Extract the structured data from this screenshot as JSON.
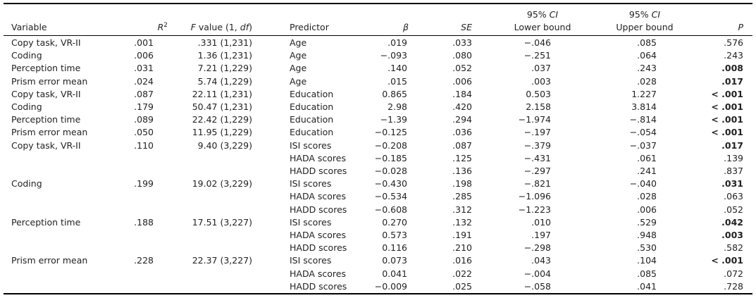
{
  "headers": {
    "variable": "Variable",
    "r2_base": "R",
    "r2_sup": "2",
    "f_italic": "F",
    "f_rest": " value (1, ",
    "f_df": "df",
    "f_close": ")",
    "predictor": "Predictor",
    "beta": "β",
    "se": "SE",
    "ci_lower_top": "95% CI",
    "ci_lower_bottom": "Lower bound",
    "ci_upper_top": "95% CI",
    "ci_upper_bottom": "Upper bound",
    "p": "P"
  },
  "left_rows": [
    {
      "variable": "Copy task, VR-II",
      "r2": ".001",
      "f": ".331 (1,231)"
    },
    {
      "variable": "Coding",
      "r2": ".006",
      "f": "1.36 (1,231)"
    },
    {
      "variable": "Perception time",
      "r2": ".031",
      "f": "7.21 (1,229)"
    },
    {
      "variable": "Prism error mean",
      "r2": ".024",
      "f": "5.74 (1,229)"
    },
    {
      "variable": "Copy task, VR-II",
      "r2": ".087",
      "f": "22.11 (1,231)"
    },
    {
      "variable": "Coding",
      "r2": ".179",
      "f": "50.47 (1,231)"
    },
    {
      "variable": "Perception time",
      "r2": ".089",
      "f": "22.42 (1,229)"
    },
    {
      "variable": "Prism error mean",
      "r2": ".050",
      "f": "11.95 (1,229)"
    },
    {
      "variable": "Copy task, VR-II",
      "r2": ".110",
      "f": "9.40 (3,229)"
    },
    {
      "variable": "Coding",
      "r2": ".199",
      "f": "19.02 (3,229)"
    },
    {
      "variable": "Perception time",
      "r2": ".188",
      "f": "17.51 (3,227)"
    },
    {
      "variable": "Prism error mean",
      "r2": ".228",
      "f": "22.37 (3,227)"
    }
  ],
  "right_rows": [
    {
      "predictor": "Age",
      "beta": ".019",
      "se": ".033",
      "lower": "−.046",
      "upper": ".085",
      "p": ".576",
      "bold": false
    },
    {
      "predictor": "Age",
      "beta": "−.093",
      "se": ".080",
      "lower": "−.251",
      "upper": ".064",
      "p": ".243",
      "bold": false
    },
    {
      "predictor": "Age",
      "beta": ".140",
      "se": ".052",
      "lower": ".037",
      "upper": ".243",
      "p": ".008",
      "bold": true
    },
    {
      "predictor": "Age",
      "beta": ".015",
      "se": ".006",
      "lower": ".003",
      "upper": ".028",
      "p": ".017",
      "bold": true
    },
    {
      "predictor": "Education",
      "beta": "0.865",
      "se": ".184",
      "lower": "0.503",
      "upper": "1.227",
      "p": "< .001",
      "bold": true
    },
    {
      "predictor": "Education",
      "beta": "2.98",
      "se": ".420",
      "lower": "2.158",
      "upper": "3.814",
      "p": "< .001",
      "bold": true
    },
    {
      "predictor": "Education",
      "beta": "−1.39",
      "se": ".294",
      "lower": "−1.974",
      "upper": "−.814",
      "p": "< .001",
      "bold": true
    },
    {
      "predictor": "Education",
      "beta": "−0.125",
      "se": ".036",
      "lower": "−.197",
      "upper": "−.054",
      "p": "< .001",
      "bold": true
    },
    {
      "predictor": "ISI scores",
      "beta": "−0.208",
      "se": ".087",
      "lower": "−.379",
      "upper": "−.037",
      "p": ".017",
      "bold": true
    },
    {
      "predictor": "HADA scores",
      "beta": "−0.185",
      "se": ".125",
      "lower": "−.431",
      "upper": ".061",
      "p": ".139",
      "bold": false
    },
    {
      "predictor": "HADD scores",
      "beta": "−0.028",
      "se": ".136",
      "lower": "−.297",
      "upper": ".241",
      "p": ".837",
      "bold": false
    },
    {
      "predictor": "ISI scores",
      "beta": "−0.430",
      "se": ".198",
      "lower": "−.821",
      "upper": "−.040",
      "p": ".031",
      "bold": true
    },
    {
      "predictor": "HADA scores",
      "beta": "−0.534",
      "se": ".285",
      "lower": "−1.096",
      "upper": ".028",
      "p": ".063",
      "bold": false
    },
    {
      "predictor": "HADD scores",
      "beta": "−0.608",
      "se": ".312",
      "lower": "−1.223",
      "upper": ".006",
      "p": ".052",
      "bold": false
    },
    {
      "predictor": "ISI scores",
      "beta": "0.270",
      "se": ".132",
      "lower": ".010",
      "upper": ".529",
      "p": ".042",
      "bold": true
    },
    {
      "predictor": "HADA scores",
      "beta": "0.573",
      "se": ".191",
      "lower": ".197",
      "upper": ".948",
      "p": ".003",
      "bold": true
    },
    {
      "predictor": "HADD scores",
      "beta": "0.116",
      "se": ".210",
      "lower": "−.298",
      "upper": ".530",
      "p": ".582",
      "bold": false
    },
    {
      "predictor": "ISI scores",
      "beta": "0.073",
      "se": ".016",
      "lower": ".043",
      "upper": ".104",
      "p": "< .001",
      "bold": true
    },
    {
      "predictor": "HADA scores",
      "beta": "0.041",
      "se": ".022",
      "lower": "−.004",
      "upper": ".085",
      "p": ".072",
      "bold": false
    },
    {
      "predictor": "HADD scores",
      "beta": "−0.009",
      "se": ".025",
      "lower": "−.058",
      "upper": ".041",
      "p": ".728",
      "bold": false
    }
  ]
}
